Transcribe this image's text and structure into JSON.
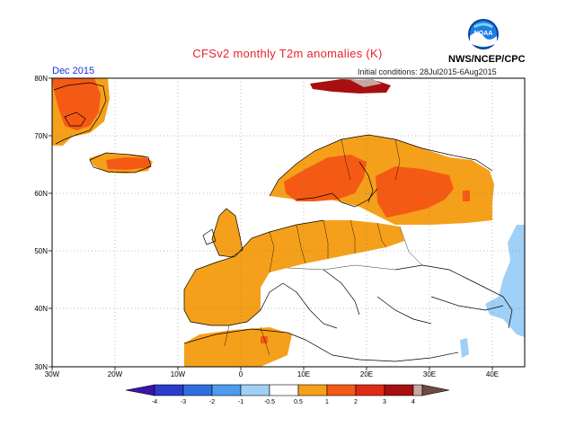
{
  "header": {
    "title": "CFSv2 monthly T2m anomalies (K)",
    "month": "Dec 2015",
    "initial_conditions": "Initial conditions: 28Jul2015-6Aug2015",
    "organization": "NWS/NCEP/CPC",
    "logo_text": "NOAA"
  },
  "map": {
    "lon_labels": [
      "30W",
      "20W",
      "10W",
      "0",
      "10E",
      "20E",
      "30E",
      "40E"
    ],
    "lat_labels": [
      "80N",
      "70N",
      "60N",
      "50N",
      "40N",
      "30N"
    ]
  },
  "colorbar": {
    "labels": [
      "-4",
      "-3",
      "-2",
      "-1",
      "-0.5",
      "0.5",
      "1",
      "2",
      "3",
      "4"
    ],
    "colors": [
      "#3b14a8",
      "#2a3bd0",
      "#2e6fe0",
      "#4e9cef",
      "#9fd0f7",
      "#ffffff",
      "#f5a01a",
      "#f55a14",
      "#e02a14",
      "#a80f10",
      "#c8a8a0",
      "#6e4a40"
    ]
  },
  "colors": {
    "anomaly_0_5_to_1": "#f5a01a",
    "anomaly_1_to_2": "#f55a14",
    "anomaly_2_to_3": "#e02a14",
    "anomaly_3_to_4": "#a80f10",
    "anomaly_4_plus": "#c8a8a0",
    "anomaly_neg_0_5_to_neg_1": "#9fd0f7"
  }
}
